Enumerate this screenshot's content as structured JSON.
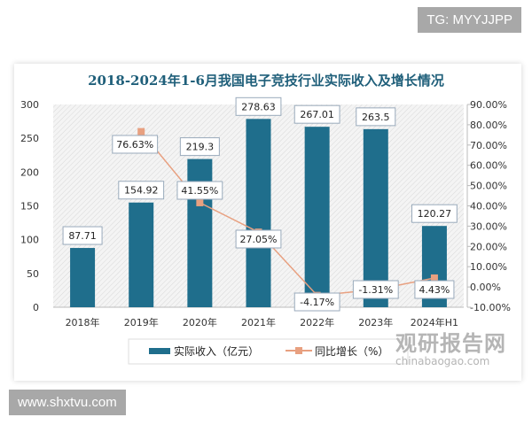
{
  "overlays": {
    "top_right_tag": "TG: MYYJJPP",
    "bottom_left_tag": "www.shxtvu.com"
  },
  "watermark": {
    "cn": "观研报告网",
    "en": "chinabaogao.com"
  },
  "colors": {
    "bar": "#1f6e8c",
    "line": "#e8a080",
    "title": "#1f5f7a"
  },
  "chart_data": {
    "type": "bar+line",
    "title": "2018-2024年1-6月我国电子竞技行业实际收入及增长情况",
    "categories": [
      "2018年",
      "2019年",
      "2020年",
      "2021年",
      "2022年",
      "2023年",
      "2024年H1"
    ],
    "series": [
      {
        "name": "实际收入（亿元）",
        "type": "bar",
        "axis": "left",
        "values": [
          87.71,
          154.92,
          219.3,
          278.63,
          267.01,
          263.5,
          120.27
        ],
        "labels": [
          "87.71",
          "154.92",
          "219.3",
          "278.63",
          "267.01",
          "263.5",
          "120.27"
        ]
      },
      {
        "name": "同比增长（%）",
        "type": "line",
        "axis": "right",
        "values": [
          null,
          76.63,
          41.55,
          27.05,
          -4.17,
          -1.31,
          4.43
        ],
        "labels": [
          "",
          "76.63%",
          "41.55%",
          "27.05%",
          "-4.17%",
          "-1.31%",
          "4.43%"
        ]
      }
    ],
    "left_axis": {
      "range": [
        0,
        300
      ],
      "ticks": [
        "0",
        "50",
        "100",
        "150",
        "200",
        "250",
        "300"
      ]
    },
    "right_axis": {
      "range": [
        -10,
        90
      ],
      "ticks": [
        "-10.00%",
        "0.00%",
        "10.00%",
        "20.00%",
        "30.00%",
        "40.00%",
        "50.00%",
        "60.00%",
        "70.00%",
        "80.00%",
        "90.00%"
      ]
    },
    "legend": "bottom",
    "grid": false
  }
}
